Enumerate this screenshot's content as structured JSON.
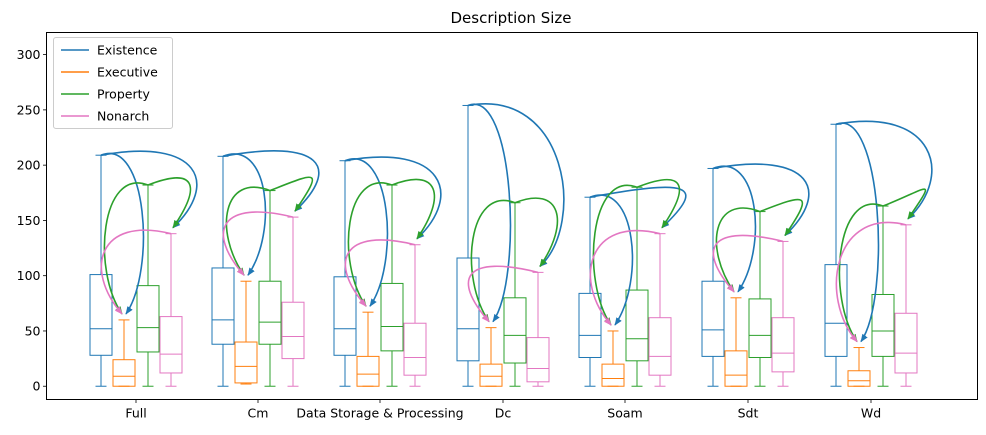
{
  "chart_data": {
    "type": "box",
    "title": "Description Size",
    "xlabel": "",
    "ylabel": "",
    "ylim": [
      -12,
      320
    ],
    "yticks": [
      0,
      50,
      100,
      150,
      200,
      250,
      300
    ],
    "categories": [
      "Full",
      "Cm",
      "Data Storage & Processing",
      "Dc",
      "Soam",
      "Sdt",
      "Wd"
    ],
    "legend": {
      "placement": "top-left"
    },
    "grid": false,
    "series": [
      {
        "name": "Existence",
        "color": "#1f77b4",
        "boxes": [
          {
            "whislo": 0,
            "q1": 28,
            "med": 52,
            "q3": 101,
            "whishi": 209
          },
          {
            "whislo": 0,
            "q1": 38,
            "med": 60,
            "q3": 107,
            "whishi": 208
          },
          {
            "whislo": 0,
            "q1": 28,
            "med": 52,
            "q3": 99,
            "whishi": 204
          },
          {
            "whislo": 0,
            "q1": 23,
            "med": 52,
            "q3": 116,
            "whishi": 254
          },
          {
            "whislo": 0,
            "q1": 26,
            "med": 46,
            "q3": 84,
            "whishi": 171
          },
          {
            "whislo": 0,
            "q1": 27,
            "med": 51,
            "q3": 95,
            "whishi": 197
          },
          {
            "whislo": 0,
            "q1": 27,
            "med": 57,
            "q3": 110,
            "whishi": 237
          }
        ]
      },
      {
        "name": "Executive",
        "color": "#ff7f0e",
        "boxes": [
          {
            "whislo": 0,
            "q1": 0,
            "med": 9,
            "q3": 24,
            "whishi": 60
          },
          {
            "whislo": 2,
            "q1": 3,
            "med": 18,
            "q3": 40,
            "whishi": 95
          },
          {
            "whislo": 0,
            "q1": 0,
            "med": 11,
            "q3": 27,
            "whishi": 67
          },
          {
            "whislo": 0,
            "q1": 0,
            "med": 9,
            "q3": 20,
            "whishi": 53
          },
          {
            "whislo": 0,
            "q1": 0,
            "med": 7,
            "q3": 20,
            "whishi": 50
          },
          {
            "whislo": 0,
            "q1": 0,
            "med": 10,
            "q3": 32,
            "whishi": 80
          },
          {
            "whislo": 0,
            "q1": 0,
            "med": 5,
            "q3": 14,
            "whishi": 35
          }
        ]
      },
      {
        "name": "Property",
        "color": "#2ca02c",
        "boxes": [
          {
            "whislo": 0,
            "q1": 31,
            "med": 53,
            "q3": 91,
            "whishi": 182
          },
          {
            "whislo": 0,
            "q1": 38,
            "med": 58,
            "q3": 95,
            "whishi": 177
          },
          {
            "whislo": 0,
            "q1": 32,
            "med": 54,
            "q3": 93,
            "whishi": 182
          },
          {
            "whislo": 0,
            "q1": 21,
            "med": 46,
            "q3": 80,
            "whishi": 166
          },
          {
            "whislo": 0,
            "q1": 23,
            "med": 43,
            "q3": 87,
            "whishi": 180
          },
          {
            "whislo": 0,
            "q1": 26,
            "med": 46,
            "q3": 79,
            "whishi": 158
          },
          {
            "whislo": 0,
            "q1": 27,
            "med": 50,
            "q3": 83,
            "whishi": 163
          }
        ]
      },
      {
        "name": "Nonarch",
        "color": "#e377c2",
        "boxes": [
          {
            "whislo": 0,
            "q1": 12,
            "med": 29,
            "q3": 63,
            "whishi": 138
          },
          {
            "whislo": 0,
            "q1": 25,
            "med": 45,
            "q3": 76,
            "whishi": 153
          },
          {
            "whislo": 0,
            "q1": 10,
            "med": 26,
            "q3": 57,
            "whishi": 128
          },
          {
            "whislo": 0,
            "q1": 4,
            "med": 16,
            "q3": 44,
            "whishi": 103
          },
          {
            "whislo": 0,
            "q1": 10,
            "med": 27,
            "q3": 62,
            "whishi": 138
          },
          {
            "whislo": 0,
            "q1": 13,
            "med": 30,
            "q3": 62,
            "whishi": 131
          },
          {
            "whislo": 0,
            "q1": 12,
            "med": 30,
            "q3": 66,
            "whishi": 146
          }
        ]
      }
    ],
    "arrows": [
      {
        "from": "Existence",
        "to": "Executive",
        "color": "#1f77b4"
      },
      {
        "from": "Existence",
        "to": "Nonarch",
        "color": "#1f77b4"
      },
      {
        "from": "Property",
        "to": "Executive",
        "color": "#2ca02c"
      },
      {
        "from": "Property",
        "to": "Nonarch",
        "color": "#2ca02c"
      },
      {
        "from": "Nonarch",
        "to": "Executive",
        "color": "#e377c2"
      }
    ]
  }
}
